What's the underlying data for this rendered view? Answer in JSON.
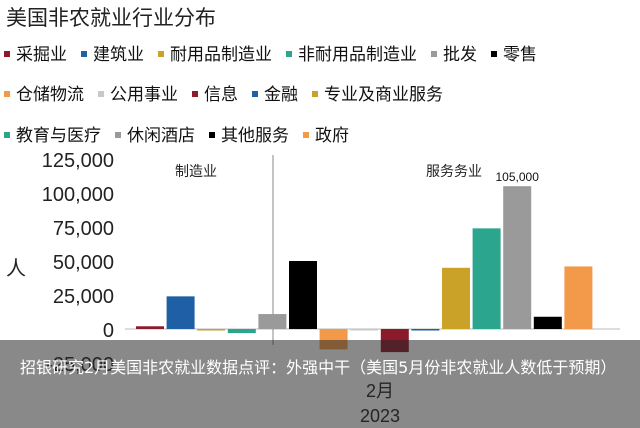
{
  "chart_data": {
    "type": "bar",
    "title": "美国非农就业行业分布",
    "legend": [
      {
        "name": "采掘业",
        "color": "#8B1A2B"
      },
      {
        "name": "建筑业",
        "color": "#1F5FA6"
      },
      {
        "name": "耐用品制造业",
        "color": "#C9A227"
      },
      {
        "name": "非耐用品制造业",
        "color": "#2BA58E"
      },
      {
        "name": "批发",
        "color": "#9A9A9A"
      },
      {
        "name": "零售",
        "color": "#000000"
      },
      {
        "name": "仓储物流",
        "color": "#F29A4A"
      },
      {
        "name": "公用事业",
        "color": "#C8C8C8"
      },
      {
        "name": "信息",
        "color": "#8B1A2B"
      },
      {
        "name": "金融",
        "color": "#1F5FA6"
      },
      {
        "name": "专业及商业服务",
        "color": "#C9A227"
      },
      {
        "name": "教育与医疗",
        "color": "#2BA58E"
      },
      {
        "name": "休闲酒店",
        "color": "#9A9A9A"
      },
      {
        "name": "其他服务",
        "color": "#000000"
      },
      {
        "name": "政府",
        "color": "#F29A4A"
      }
    ],
    "legend_rows": [
      [
        "采掘业",
        "建筑业",
        "耐用品制造业",
        "非耐用品制造业",
        "批发",
        "零售"
      ],
      [
        "仓储物流",
        "公用事业",
        "信息",
        "金融",
        "专业及商业服务"
      ],
      [
        "教育与医疗",
        "休闲酒店",
        "其他服务",
        "政府"
      ]
    ],
    "group_labels": [
      "制造业",
      "服务务业"
    ],
    "series": [
      {
        "name": "采掘业",
        "value": 2000,
        "color": "#8B1A2B"
      },
      {
        "name": "建筑业",
        "value": 24000,
        "color": "#1F5FA6"
      },
      {
        "name": "耐用品制造业",
        "value": -1000,
        "color": "#C9A227"
      },
      {
        "name": "非耐用品制造业",
        "value": -3000,
        "color": "#2BA58E"
      },
      {
        "name": "批发",
        "value": 11000,
        "color": "#9A9A9A"
      },
      {
        "name": "零售",
        "value": 50000,
        "color": "#000000"
      },
      {
        "name": "仓储物流",
        "value": -15000,
        "color": "#F29A4A"
      },
      {
        "name": "公用事业",
        "value": -500,
        "color": "#C8C8C8"
      },
      {
        "name": "信息",
        "value": -17000,
        "color": "#8B1A2B"
      },
      {
        "name": "金融",
        "value": -1000,
        "color": "#1F5FA6"
      },
      {
        "name": "专业及商业服务",
        "value": 45000,
        "color": "#C9A227"
      },
      {
        "name": "教育与医疗",
        "value": 74000,
        "color": "#2BA58E"
      },
      {
        "name": "休闲酒店",
        "value": 105000,
        "color": "#9A9A9A"
      },
      {
        "name": "其他服务",
        "value": 9000,
        "color": "#000000"
      },
      {
        "name": "政府",
        "value": 46000,
        "color": "#F29A4A"
      }
    ],
    "data_labels": [
      {
        "series": "休闲酒店",
        "text": "105,000"
      }
    ],
    "y_ticks": [
      -25000,
      0,
      25000,
      50000,
      75000,
      100000,
      125000
    ],
    "y_tick_labels": [
      "-25,000",
      "0",
      "25,000",
      "50,000",
      "75,000",
      "100,000",
      "125,000"
    ],
    "ylim": [
      -25000,
      125000
    ],
    "ylabel": "人",
    "x_label": "2月",
    "x_sublabel": "2023",
    "grid": false
  },
  "caption": "招银研究2月美国非农就业数据点评：外强中干（美国5月份非农就业人数低于预期）"
}
